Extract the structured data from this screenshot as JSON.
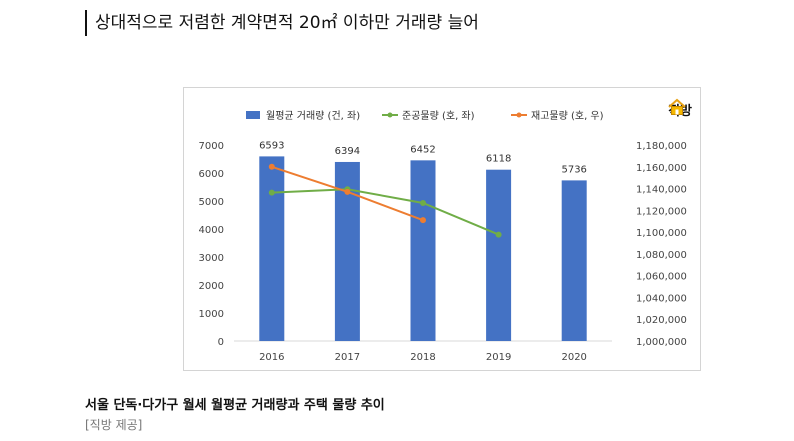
{
  "headline": "상대적으로 저렴한 계약면적 20㎡ 이하만 거래량 늘어",
  "brand": {
    "name": "직방"
  },
  "caption": "서울 단독·다가구 월세 월평균 거래량과 주택 물량 추이",
  "credit": "[직방 제공]",
  "colors": {
    "bar": "#4472c4",
    "supply": "#70ad47",
    "stock": "#ed7d31",
    "grid": "#d9d9d9",
    "axis_text": "#444444"
  },
  "chart_data": {
    "type": "bar",
    "categories": [
      "2016",
      "2017",
      "2018",
      "2019",
      "2020"
    ],
    "series": [
      {
        "name": "월평균 거래량 (건, 좌)",
        "type": "bar",
        "axis": "left",
        "values": [
          6593,
          6394,
          6452,
          6118,
          5736
        ],
        "data_labels": [
          "6593",
          "6394",
          "6452",
          "6118",
          "5736"
        ]
      },
      {
        "name": "준공물량 (호, 좌)",
        "type": "line",
        "axis": "left",
        "values": [
          5300,
          5420,
          4930,
          3800,
          null
        ]
      },
      {
        "name": "재고물량 (호, 우)",
        "type": "line",
        "axis": "right",
        "values": [
          1160000,
          1137000,
          1111000,
          null,
          null
        ]
      }
    ],
    "y_left": {
      "min": 0,
      "max": 7000,
      "ticks": [
        "0",
        "1000",
        "2000",
        "3000",
        "4000",
        "5000",
        "6000",
        "7000"
      ]
    },
    "y_right": {
      "min": 1000000,
      "max": 1180000,
      "ticks": [
        "1,000,000",
        "1,020,000",
        "1,040,000",
        "1,060,000",
        "1,080,000",
        "1,100,000",
        "1,120,000",
        "1,140,000",
        "1,160,000",
        "1,180,000"
      ]
    },
    "legend_position": "top",
    "grid": false
  }
}
